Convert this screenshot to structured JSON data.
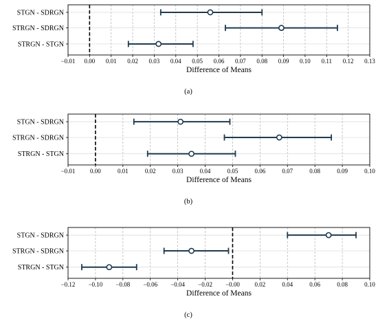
{
  "chart_data": [
    {
      "type": "interval",
      "caption": "(a)",
      "xlabel": "Difference of Means",
      "xlim": [
        -0.01,
        0.13
      ],
      "xticks": [
        "−0.01",
        "0.00",
        "0.01",
        "0.02",
        "0.03",
        "0.04",
        "0.05",
        "0.06",
        "0.07",
        "0.08",
        "0.09",
        "0.10",
        "0.11",
        "0.12",
        "0.13"
      ],
      "zero_line": 0,
      "grid": true,
      "categories": [
        "STGN - SDRGN",
        "STRGN - SDRGN",
        "STRGN - STGN"
      ],
      "means": [
        0.056,
        0.089,
        0.032
      ],
      "lower": [
        0.033,
        0.063,
        0.018
      ],
      "upper": [
        0.08,
        0.115,
        0.048
      ]
    },
    {
      "type": "interval",
      "caption": "(b)",
      "xlabel": "Difference of Means",
      "xlim": [
        -0.01,
        0.1
      ],
      "xticks": [
        "−0.01",
        "0.00",
        "0.01",
        "0.02",
        "0.03",
        "0.04",
        "0.05",
        "0.06",
        "0.07",
        "0.08",
        "0.09",
        "0.10"
      ],
      "zero_line": 0,
      "grid": true,
      "categories": [
        "STGN - SDRGN",
        "STRGN - SDRGN",
        "STRGN - STGN"
      ],
      "means": [
        0.031,
        0.067,
        0.035
      ],
      "lower": [
        0.014,
        0.047,
        0.019
      ],
      "upper": [
        0.049,
        0.086,
        0.051
      ]
    },
    {
      "type": "interval",
      "caption": "(c)",
      "xlabel": "Difference of Means",
      "xlim": [
        -0.12,
        0.1
      ],
      "xticks": [
        "−0.12",
        "−0.10",
        "−0.08",
        "−0.06",
        "−0.04",
        "−0.02",
        "−0.00",
        "0.02",
        "0.04",
        "0.06",
        "0.08",
        "0.10"
      ],
      "zero_line": 0,
      "grid": true,
      "categories": [
        "STGN - SDRGN",
        "STRGN - SDRGN",
        "STRGN - STGN"
      ],
      "means": [
        0.07,
        -0.03,
        -0.09
      ],
      "lower": [
        0.04,
        -0.05,
        -0.11
      ],
      "upper": [
        0.09,
        -0.003,
        -0.07
      ]
    }
  ],
  "colors": {
    "interval": "#1f3a4d",
    "grid": "#b0b0b0",
    "frame": "#000000",
    "zero_line": "#000000",
    "marker_fill": "#ffffff"
  }
}
